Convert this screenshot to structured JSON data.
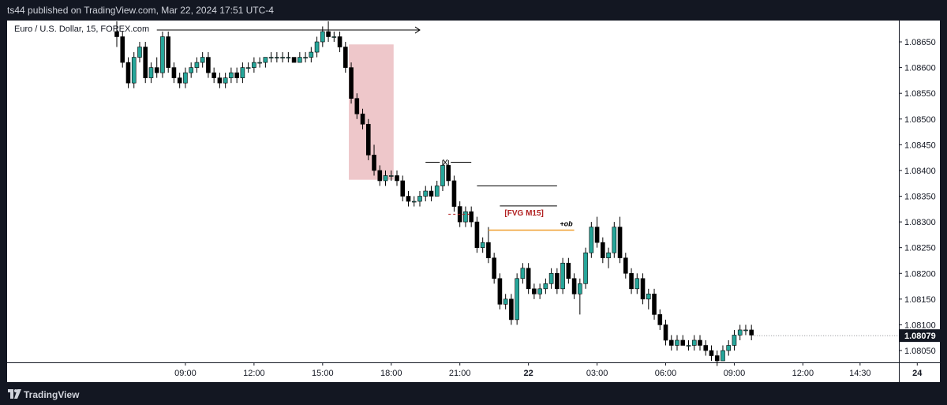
{
  "header": {
    "published": "ts44 published on TradingView.com, Mar 22, 2024 17:51 UTC-4"
  },
  "chart": {
    "legend": "Euro / U.S. Dollar, 15, FOREX.com"
  },
  "footer": {
    "brand": "TradingView",
    "logo_icon": "tradingview-logo-icon"
  },
  "chart_data": {
    "type": "candlestick",
    "symbol": "Euro / U.S. Dollar, 15, FOREX.com",
    "price_ticks": [
      1.0865,
      1.086,
      1.0855,
      1.085,
      1.0845,
      1.084,
      1.0835,
      1.083,
      1.0825,
      1.082,
      1.0815,
      1.081,
      1.0805
    ],
    "price_range": [
      1.08027,
      1.08693
    ],
    "last_price": 1.08079,
    "last_price_label": "1.08079",
    "time_ticks": [
      {
        "label": "09:00",
        "bar": 12
      },
      {
        "label": "12:00",
        "bar": 24
      },
      {
        "label": "15:00",
        "bar": 36
      },
      {
        "label": "18:00",
        "bar": 48
      },
      {
        "label": "21:00",
        "bar": 60
      },
      {
        "label": "22",
        "bar": 72
      },
      {
        "label": "03:00",
        "bar": 84
      },
      {
        "label": "06:00",
        "bar": 96
      },
      {
        "label": "09:00",
        "bar": 108
      },
      {
        "label": "12:00",
        "bar": 120
      },
      {
        "label": "14:30",
        "bar": 130
      },
      {
        "label": "24",
        "bar": 140
      },
      {
        "label": "21:00",
        "bar": 156
      }
    ],
    "colors": {
      "up": "#26a69a",
      "down": "#000000",
      "zone": "#e8b4b8",
      "ob_line": "#f0a030",
      "label_red": "#b22222",
      "price_tag_bg": "#131722"
    },
    "candles": [
      {
        "o": 1.0867,
        "h": 1.0869,
        "l": 1.0864,
        "c": 1.0866
      },
      {
        "o": 1.0866,
        "h": 1.0867,
        "l": 1.086,
        "c": 1.0861
      },
      {
        "o": 1.0861,
        "h": 1.0862,
        "l": 1.0856,
        "c": 1.0857
      },
      {
        "o": 1.0857,
        "h": 1.0863,
        "l": 1.0856,
        "c": 1.0862
      },
      {
        "o": 1.0862,
        "h": 1.0865,
        "l": 1.0861,
        "c": 1.0864
      },
      {
        "o": 1.0864,
        "h": 1.0865,
        "l": 1.0857,
        "c": 1.0858
      },
      {
        "o": 1.0858,
        "h": 1.0861,
        "l": 1.0857,
        "c": 1.086
      },
      {
        "o": 1.086,
        "h": 1.0862,
        "l": 1.0858,
        "c": 1.0859
      },
      {
        "o": 1.0859,
        "h": 1.0867,
        "l": 1.0858,
        "c": 1.0866
      },
      {
        "o": 1.0866,
        "h": 1.0867,
        "l": 1.0859,
        "c": 1.086
      },
      {
        "o": 1.086,
        "h": 1.0861,
        "l": 1.0857,
        "c": 1.0858
      },
      {
        "o": 1.0858,
        "h": 1.0859,
        "l": 1.0856,
        "c": 1.0857
      },
      {
        "o": 1.0857,
        "h": 1.086,
        "l": 1.0856,
        "c": 1.0859
      },
      {
        "o": 1.0859,
        "h": 1.0861,
        "l": 1.0858,
        "c": 1.086
      },
      {
        "o": 1.086,
        "h": 1.0862,
        "l": 1.0859,
        "c": 1.0861
      },
      {
        "o": 1.0861,
        "h": 1.0863,
        "l": 1.086,
        "c": 1.0862
      },
      {
        "o": 1.0862,
        "h": 1.0863,
        "l": 1.0858,
        "c": 1.0859
      },
      {
        "o": 1.0859,
        "h": 1.086,
        "l": 1.0857,
        "c": 1.0858
      },
      {
        "o": 1.0858,
        "h": 1.0859,
        "l": 1.0856,
        "c": 1.0857
      },
      {
        "o": 1.0857,
        "h": 1.0859,
        "l": 1.0856,
        "c": 1.0858
      },
      {
        "o": 1.0858,
        "h": 1.086,
        "l": 1.0857,
        "c": 1.0859
      },
      {
        "o": 1.0859,
        "h": 1.086,
        "l": 1.0857,
        "c": 1.0858
      },
      {
        "o": 1.0858,
        "h": 1.0861,
        "l": 1.0857,
        "c": 1.086
      },
      {
        "o": 1.086,
        "h": 1.0861,
        "l": 1.0859,
        "c": 1.086
      },
      {
        "o": 1.086,
        "h": 1.0862,
        "l": 1.0859,
        "c": 1.0861
      },
      {
        "o": 1.0861,
        "h": 1.0862,
        "l": 1.086,
        "c": 1.0861
      },
      {
        "o": 1.0861,
        "h": 1.0862,
        "l": 1.086,
        "c": 1.0862
      },
      {
        "o": 1.0862,
        "h": 1.0863,
        "l": 1.0861,
        "c": 1.0862
      },
      {
        "o": 1.0862,
        "h": 1.0863,
        "l": 1.0861,
        "c": 1.0862
      },
      {
        "o": 1.0862,
        "h": 1.0863,
        "l": 1.0861,
        "c": 1.0862
      },
      {
        "o": 1.0862,
        "h": 1.0863,
        "l": 1.0861,
        "c": 1.0862
      },
      {
        "o": 1.0862,
        "h": 1.0862,
        "l": 1.0861,
        "c": 1.0861
      },
      {
        "o": 1.0861,
        "h": 1.0863,
        "l": 1.0861,
        "c": 1.0862
      },
      {
        "o": 1.0862,
        "h": 1.0863,
        "l": 1.0861,
        "c": 1.0862
      },
      {
        "o": 1.0862,
        "h": 1.0864,
        "l": 1.0861,
        "c": 1.0863
      },
      {
        "o": 1.0863,
        "h": 1.0866,
        "l": 1.0862,
        "c": 1.0865
      },
      {
        "o": 1.0865,
        "h": 1.0868,
        "l": 1.0864,
        "c": 1.0867
      },
      {
        "o": 1.0867,
        "h": 1.0869,
        "l": 1.0865,
        "c": 1.0866
      },
      {
        "o": 1.0866,
        "h": 1.0867,
        "l": 1.0865,
        "c": 1.0866
      },
      {
        "o": 1.0866,
        "h": 1.0867,
        "l": 1.0863,
        "c": 1.0864
      },
      {
        "o": 1.0864,
        "h": 1.0865,
        "l": 1.0859,
        "c": 1.086
      },
      {
        "o": 1.086,
        "h": 1.0861,
        "l": 1.0853,
        "c": 1.0854
      },
      {
        "o": 1.0854,
        "h": 1.0855,
        "l": 1.085,
        "c": 1.0851
      },
      {
        "o": 1.0851,
        "h": 1.0852,
        "l": 1.0848,
        "c": 1.0849
      },
      {
        "o": 1.0849,
        "h": 1.085,
        "l": 1.0842,
        "c": 1.0843
      },
      {
        "o": 1.0843,
        "h": 1.0845,
        "l": 1.0839,
        "c": 1.084
      },
      {
        "o": 1.084,
        "h": 1.0841,
        "l": 1.0837,
        "c": 1.0838
      },
      {
        "o": 1.0838,
        "h": 1.084,
        "l": 1.0837,
        "c": 1.0839
      },
      {
        "o": 1.0839,
        "h": 1.084,
        "l": 1.0838,
        "c": 1.0839
      },
      {
        "o": 1.0839,
        "h": 1.084,
        "l": 1.0837,
        "c": 1.0838
      },
      {
        "o": 1.0838,
        "h": 1.0839,
        "l": 1.0834,
        "c": 1.0835
      },
      {
        "o": 1.0835,
        "h": 1.0836,
        "l": 1.0833,
        "c": 1.0834
      },
      {
        "o": 1.0834,
        "h": 1.0835,
        "l": 1.0833,
        "c": 1.0834
      },
      {
        "o": 1.0834,
        "h": 1.0836,
        "l": 1.0833,
        "c": 1.0835
      },
      {
        "o": 1.0835,
        "h": 1.0837,
        "l": 1.0834,
        "c": 1.0836
      },
      {
        "o": 1.0836,
        "h": 1.0837,
        "l": 1.0834,
        "c": 1.0835
      },
      {
        "o": 1.0835,
        "h": 1.0838,
        "l": 1.0835,
        "c": 1.0837
      },
      {
        "o": 1.0837,
        "h": 1.0842,
        "l": 1.0836,
        "c": 1.0841
      },
      {
        "o": 1.0841,
        "h": 1.0842,
        "l": 1.0837,
        "c": 1.0838
      },
      {
        "o": 1.0838,
        "h": 1.0839,
        "l": 1.0832,
        "c": 1.0833
      },
      {
        "o": 1.0833,
        "h": 1.0834,
        "l": 1.0829,
        "c": 1.083
      },
      {
        "o": 1.083,
        "h": 1.0833,
        "l": 1.0829,
        "c": 1.0832
      },
      {
        "o": 1.0832,
        "h": 1.0833,
        "l": 1.0829,
        "c": 1.083
      },
      {
        "o": 1.083,
        "h": 1.0831,
        "l": 1.0824,
        "c": 1.0825
      },
      {
        "o": 1.0825,
        "h": 1.0827,
        "l": 1.0824,
        "c": 1.0826
      },
      {
        "o": 1.0826,
        "h": 1.0829,
        "l": 1.0822,
        "c": 1.0823
      },
      {
        "o": 1.0823,
        "h": 1.0824,
        "l": 1.0818,
        "c": 1.0819
      },
      {
        "o": 1.0819,
        "h": 1.082,
        "l": 1.0813,
        "c": 1.0814
      },
      {
        "o": 1.0814,
        "h": 1.0816,
        "l": 1.0813,
        "c": 1.0815
      },
      {
        "o": 1.0815,
        "h": 1.0816,
        "l": 1.081,
        "c": 1.0811
      },
      {
        "o": 1.0811,
        "h": 1.082,
        "l": 1.081,
        "c": 1.0819
      },
      {
        "o": 1.0819,
        "h": 1.0822,
        "l": 1.0818,
        "c": 1.0821
      },
      {
        "o": 1.0821,
        "h": 1.0822,
        "l": 1.0816,
        "c": 1.0817
      },
      {
        "o": 1.0817,
        "h": 1.0818,
        "l": 1.0815,
        "c": 1.0816
      },
      {
        "o": 1.0816,
        "h": 1.0818,
        "l": 1.0815,
        "c": 1.0817
      },
      {
        "o": 1.0817,
        "h": 1.0819,
        "l": 1.0816,
        "c": 1.0818
      },
      {
        "o": 1.0818,
        "h": 1.0821,
        "l": 1.0817,
        "c": 1.082
      },
      {
        "o": 1.082,
        "h": 1.0821,
        "l": 1.0816,
        "c": 1.0817
      },
      {
        "o": 1.0817,
        "h": 1.0823,
        "l": 1.0816,
        "c": 1.0822
      },
      {
        "o": 1.0822,
        "h": 1.0823,
        "l": 1.0818,
        "c": 1.0819
      },
      {
        "o": 1.0819,
        "h": 1.082,
        "l": 1.0815,
        "c": 1.0816
      },
      {
        "o": 1.0816,
        "h": 1.0819,
        "l": 1.0812,
        "c": 1.0818
      },
      {
        "o": 1.0818,
        "h": 1.0825,
        "l": 1.0817,
        "c": 1.0824
      },
      {
        "o": 1.0824,
        "h": 1.083,
        "l": 1.0823,
        "c": 1.0829
      },
      {
        "o": 1.0829,
        "h": 1.0831,
        "l": 1.0825,
        "c": 1.0826
      },
      {
        "o": 1.0826,
        "h": 1.0827,
        "l": 1.0822,
        "c": 1.0823
      },
      {
        "o": 1.0823,
        "h": 1.0825,
        "l": 1.0821,
        "c": 1.0824
      },
      {
        "o": 1.0824,
        "h": 1.083,
        "l": 1.0823,
        "c": 1.0829
      },
      {
        "o": 1.0829,
        "h": 1.0831,
        "l": 1.0822,
        "c": 1.0823
      },
      {
        "o": 1.0823,
        "h": 1.0824,
        "l": 1.0819,
        "c": 1.082
      },
      {
        "o": 1.082,
        "h": 1.0821,
        "l": 1.0816,
        "c": 1.0817
      },
      {
        "o": 1.0817,
        "h": 1.082,
        "l": 1.0816,
        "c": 1.0819
      },
      {
        "o": 1.0819,
        "h": 1.082,
        "l": 1.0814,
        "c": 1.0815
      },
      {
        "o": 1.0815,
        "h": 1.0817,
        "l": 1.0813,
        "c": 1.0816
      },
      {
        "o": 1.0816,
        "h": 1.0817,
        "l": 1.0811,
        "c": 1.0812
      },
      {
        "o": 1.0812,
        "h": 1.0813,
        "l": 1.0809,
        "c": 1.081
      },
      {
        "o": 1.081,
        "h": 1.0811,
        "l": 1.0806,
        "c": 1.0807
      },
      {
        "o": 1.0807,
        "h": 1.0808,
        "l": 1.0805,
        "c": 1.0806
      },
      {
        "o": 1.0806,
        "h": 1.0808,
        "l": 1.0805,
        "c": 1.0807
      },
      {
        "o": 1.0807,
        "h": 1.0808,
        "l": 1.0806,
        "c": 1.0806
      },
      {
        "o": 1.0806,
        "h": 1.0807,
        "l": 1.0805,
        "c": 1.0806
      },
      {
        "o": 1.0806,
        "h": 1.0808,
        "l": 1.0805,
        "c": 1.0807
      },
      {
        "o": 1.0807,
        "h": 1.0808,
        "l": 1.0805,
        "c": 1.0806
      },
      {
        "o": 1.0806,
        "h": 1.0807,
        "l": 1.0804,
        "c": 1.0805
      },
      {
        "o": 1.0805,
        "h": 1.0806,
        "l": 1.0803,
        "c": 1.0804
      },
      {
        "o": 1.0804,
        "h": 1.0805,
        "l": 1.0802,
        "c": 1.0803
      },
      {
        "o": 1.0803,
        "h": 1.0806,
        "l": 1.0803,
        "c": 1.0805
      },
      {
        "o": 1.0805,
        "h": 1.0807,
        "l": 1.0804,
        "c": 1.0806
      },
      {
        "o": 1.0806,
        "h": 1.0809,
        "l": 1.0805,
        "c": 1.0808
      },
      {
        "o": 1.0808,
        "h": 1.081,
        "l": 1.0807,
        "c": 1.0809
      },
      {
        "o": 1.0809,
        "h": 1.081,
        "l": 1.0808,
        "c": 1.0809
      },
      {
        "o": 1.0809,
        "h": 1.081,
        "l": 1.0807,
        "c": 1.0808
      }
    ],
    "annotations": {
      "zone": {
        "bar_start": 41,
        "bar_end": 48,
        "top": 1.08645,
        "bottom": 1.08382
      },
      "top_arrow": {
        "bar_start": 7,
        "bar_end": 53,
        "price": 1.08673
      },
      "x_line": {
        "label": "X",
        "bar_start": 54,
        "bar_end": 62,
        "price": 1.08416
      },
      "level_line": {
        "bar_start": 63,
        "bar_end": 77,
        "price": 1.0837
      },
      "fvg_line": {
        "bar_start": 67,
        "bar_end": 77,
        "price": 1.08331
      },
      "fvg_label": "[FVG M15]",
      "ob_line": {
        "bar_start": 65,
        "bar_end": 80,
        "price": 1.08284
      },
      "ob_label": "+ob",
      "dash_line": {
        "bar_start": 58,
        "bar_end": 62,
        "price": 1.08315
      }
    }
  }
}
